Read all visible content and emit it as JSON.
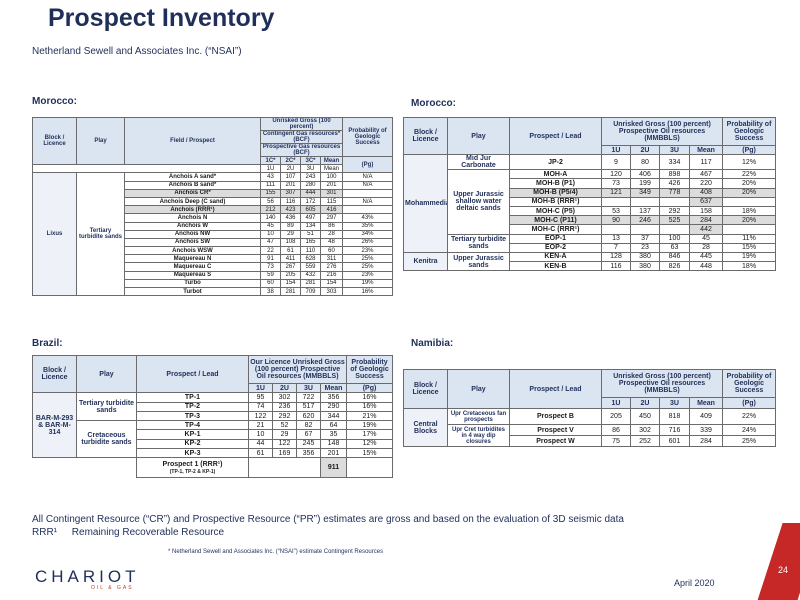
{
  "title": "Prospect Inventory",
  "subtitle": "Netherland Sewell and Associates Inc. (“NSAI”)",
  "regions": {
    "morocco_left": "Morocco:",
    "morocco_right": "Morocco:",
    "brazil": "Brazil:",
    "namibia": "Namibia:"
  },
  "table1": {
    "h_block": "Block / Licence",
    "h_play": "Play",
    "h_field": "Field / Prospect",
    "h_group": "Unrisked Gross (100 percent)",
    "h_group2": "Contingent Gas resources* (BCF)",
    "h_group3": "Prospective Gas resources (BCF)",
    "h_prob": "Probability of Geologic Success",
    "h_pg": "(Pg)",
    "h_1c": "1C*",
    "h_2c": "2C*",
    "h_3c": "3C*",
    "h_mean_a": "Mean",
    "h_1u": "1U",
    "h_2u": "2U",
    "h_3u": "3U",
    "h_mean_b": "Mean",
    "block": "Lixus",
    "play": "Tertiary turbidite sands",
    "rows": [
      {
        "name": "Anchois A sand*",
        "v1": "43",
        "v2": "107",
        "v3": "243",
        "m": "100",
        "p": "N/A"
      },
      {
        "name": "Anchois B sand*",
        "v1": "111",
        "v2": "201",
        "v3": "280",
        "m": "201",
        "p": "N/A"
      },
      {
        "name": "Anchois CR*",
        "v1": "155",
        "v2": "307",
        "v3": "444",
        "m": "301",
        "p": ""
      },
      {
        "name": "Anchois Deep (C sand)",
        "v1": "56",
        "v2": "116",
        "v3": "172",
        "m": "115",
        "p": "N/A"
      },
      {
        "name": "Anchois (RRR¹)",
        "v1": "212",
        "v2": "423",
        "v3": "605",
        "m": "416",
        "p": ""
      },
      {
        "name": "Anchois N",
        "v1": "140",
        "v2": "436",
        "v3": "497",
        "m": "297",
        "p": "43%"
      },
      {
        "name": "Anchois W",
        "v1": "45",
        "v2": "89",
        "v3": "134",
        "m": "86",
        "p": "35%"
      },
      {
        "name": "Anchois NW",
        "v1": "10",
        "v2": "29",
        "v3": "51",
        "m": "28",
        "p": "34%"
      },
      {
        "name": "Anchois SW",
        "v1": "47",
        "v2": "108",
        "v3": "165",
        "m": "48",
        "p": "26%"
      },
      {
        "name": "Anchois WSW",
        "v1": "22",
        "v2": "61",
        "v3": "110",
        "m": "60",
        "p": "23%"
      },
      {
        "name": "Maquereau N",
        "v1": "91",
        "v2": "411",
        "v3": "628",
        "m": "311",
        "p": "25%"
      },
      {
        "name": "Maquereau C",
        "v1": "73",
        "v2": "267",
        "v3": "559",
        "m": "276",
        "p": "25%"
      },
      {
        "name": "Maquereau S",
        "v1": "59",
        "v2": "205",
        "v3": "432",
        "m": "216",
        "p": "23%"
      },
      {
        "name": "Turbo",
        "v1": "60",
        "v2": "154",
        "v3": "281",
        "m": "154",
        "p": "19%"
      },
      {
        "name": "Turbot",
        "v1": "38",
        "v2": "281",
        "v3": "709",
        "m": "303",
        "p": "16%"
      }
    ]
  },
  "table2": {
    "h_block": "Block / Licence",
    "h_play": "Play",
    "h_prospect": "Prospect / Lead",
    "h_group": "Unrisked Gross (100 percent) Prospective Oil resources (MMBBLS)",
    "h_prob": "Probability of Geologic Success",
    "h_pg": "(Pg)",
    "h_1u": "1U",
    "h_2u": "2U",
    "h_3u": "3U",
    "h_mean": "Mean",
    "block_moh": "Mohammedia",
    "block_ken": "Kenitra",
    "play_mid": "Mid Jur Carbonate",
    "play_upper": "Upper Jurassic shallow water deltaic sands",
    "play_tert": "Tertiary turbidite sands",
    "play_ken": "Upper Jurassic sands",
    "rows": [
      {
        "name": "JP-2",
        "v1": "9",
        "v2": "80",
        "v3": "334",
        "m": "117",
        "p": "12%"
      },
      {
        "name": "MOH-A",
        "v1": "120",
        "v2": "406",
        "v3": "898",
        "m": "467",
        "p": "22%"
      },
      {
        "name": "MOH-B (P1)",
        "v1": "73",
        "v2": "199",
        "v3": "426",
        "m": "220",
        "p": "20%"
      },
      {
        "name": "MOH-B (P5/4)",
        "v1": "121",
        "v2": "349",
        "v3": "778",
        "m": "408",
        "p": "20%"
      },
      {
        "name": "MOH-B (RRR¹)",
        "v1": "",
        "v2": "",
        "v3": "",
        "m": "637",
        "p": ""
      },
      {
        "name": "MOH-C (P5)",
        "v1": "53",
        "v2": "137",
        "v3": "292",
        "m": "158",
        "p": "18%"
      },
      {
        "name": "MOH-C (P11)",
        "v1": "90",
        "v2": "246",
        "v3": "525",
        "m": "284",
        "p": "20%"
      },
      {
        "name": "MOH-C (RRR¹)",
        "v1": "",
        "v2": "",
        "v3": "",
        "m": "442",
        "p": ""
      },
      {
        "name": "EOP-1",
        "v1": "13",
        "v2": "37",
        "v3": "100",
        "m": "45",
        "p": "11%"
      },
      {
        "name": "EOP-2",
        "v1": "7",
        "v2": "23",
        "v3": "63",
        "m": "28",
        "p": "15%"
      },
      {
        "name": "KEN-A",
        "v1": "128",
        "v2": "380",
        "v3": "846",
        "m": "445",
        "p": "19%"
      },
      {
        "name": "KEN-B",
        "v1": "116",
        "v2": "380",
        "v3": "826",
        "m": "448",
        "p": "18%"
      }
    ]
  },
  "table3": {
    "h_block": "Block / Licence",
    "h_play": "Play",
    "h_prospect": "Prospect / Lead",
    "h_group": "Our Licence Unrisked Gross (100 percent) Prospective Oil resources (MMBBLS)",
    "h_prob": "Probability of Geologic Success",
    "h_pg": "(Pg)",
    "h_1u": "1U",
    "h_2u": "2U",
    "h_3u": "3U",
    "h_mean": "Mean",
    "block": "BAR-M-293 & BAR-M-314",
    "play_tert": "Tertiary turbidite sands",
    "play_cret": "Cretaceous turbidite sands",
    "rows": [
      {
        "name": "TP-1",
        "v1": "95",
        "v2": "302",
        "v3": "722",
        "m": "356",
        "p": "16%"
      },
      {
        "name": "TP-2",
        "v1": "74",
        "v2": "236",
        "v3": "517",
        "m": "290",
        "p": "16%"
      },
      {
        "name": "TP-3",
        "v1": "122",
        "v2": "292",
        "v3": "620",
        "m": "344",
        "p": "21%"
      },
      {
        "name": "TP-4",
        "v1": "21",
        "v2": "52",
        "v3": "82",
        "m": "64",
        "p": "19%"
      },
      {
        "name": "KP-1",
        "v1": "10",
        "v2": "29",
        "v3": "67",
        "m": "35",
        "p": "17%"
      },
      {
        "name": "KP-2",
        "v1": "44",
        "v2": "122",
        "v3": "245",
        "m": "148",
        "p": "12%"
      },
      {
        "name": "KP-3",
        "v1": "61",
        "v2": "169",
        "v3": "356",
        "m": "201",
        "p": "15%"
      }
    ],
    "rrr_label": "Prospect 1 (RRR¹)",
    "rrr_sub": "(TP-1, TP-2 & KP-1)",
    "rrr_mean": "911"
  },
  "table4": {
    "h_block": "Block / Licence",
    "h_play": "Play",
    "h_prospect": "Prospect / Lead",
    "h_group": "Unrisked Gross (100 percent) Prospective Oil resources (MMBBLS)",
    "h_prob": "Probability of Geologic Success",
    "h_pg": "(Pg)",
    "h_1u": "1U",
    "h_2u": "2U",
    "h_3u": "3U",
    "h_mean": "Mean",
    "block": "Central Blocks",
    "play_1": "Upr Cretaceous fan prospects",
    "play_2": "Upr Cret turbidites in 4 way dip closures",
    "rows": [
      {
        "name": "Prospect B",
        "v1": "205",
        "v2": "450",
        "v3": "818",
        "m": "409",
        "p": "22%"
      },
      {
        "name": "Prospect V",
        "v1": "86",
        "v2": "302",
        "v3": "716",
        "m": "339",
        "p": "24%"
      },
      {
        "name": "Prospect W",
        "v1": "75",
        "v2": "252",
        "v3": "601",
        "m": "284",
        "p": "25%"
      }
    ]
  },
  "note_line1": "All Contingent Resource (“CR”) and Prospective Resource (“PR”) estimates are gross and based on the evaluation of 3D seismic data",
  "note_line2_a": "RRR¹",
  "note_line2_b": "Remaining Recoverable Resource",
  "footnote": "* Netherland Sewell and Associates Inc. (“NSAI”) estimate Contingent Resources",
  "logo": {
    "name": "CHARIOT",
    "sub": "OIL & GAS"
  },
  "date": "April 2020",
  "page_number": "24",
  "colors": {
    "navy": "#1f2f5a",
    "header_fill": "#dbe5f1",
    "highlight": "#dcdcdc",
    "accent": "#c62828"
  }
}
